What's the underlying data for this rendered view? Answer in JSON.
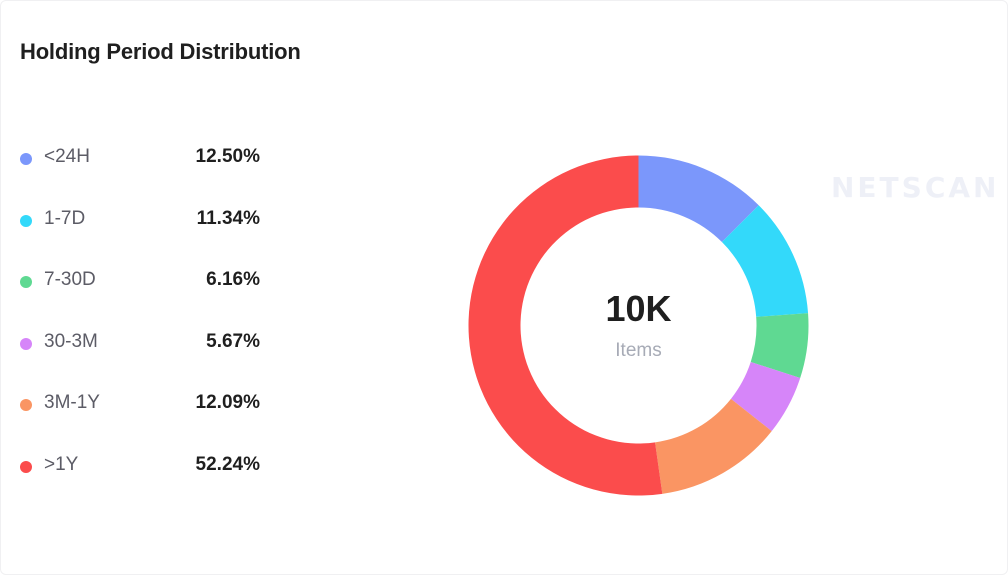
{
  "title": "Holding Period Distribution",
  "watermark": "NETSCAN",
  "center": {
    "value": "10K",
    "label": "Items"
  },
  "chart_data": {
    "type": "pie",
    "title": "Holding Period Distribution",
    "donut": true,
    "legend_position": "left",
    "categories": [
      "<24H",
      "1-7D",
      "7-30D",
      "30-3M",
      "3M-1Y",
      ">1Y"
    ],
    "values": [
      12.5,
      11.34,
      6.16,
      5.67,
      12.09,
      52.24
    ],
    "value_labels": [
      "12.50%",
      "11.34%",
      "6.16%",
      "5.67%",
      "12.09%",
      "52.24%"
    ],
    "colors": [
      "#7b97fb",
      "#33d9fa",
      "#5fd992",
      "#d685f9",
      "#fa9563",
      "#fb4c4c"
    ]
  }
}
